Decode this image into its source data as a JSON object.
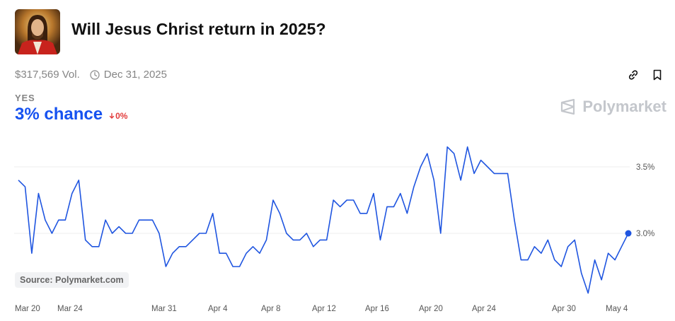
{
  "header": {
    "title": "Will Jesus Christ return in 2025?",
    "volume": "$317,569 Vol.",
    "end_date": "Dec 31, 2025"
  },
  "market": {
    "outcome": "YES",
    "chance": "3% chance",
    "change": "0%"
  },
  "brand": "Polymarket",
  "source": "Source: Polymarket.com",
  "colors": {
    "line": "#1f55e0",
    "chance": "#1652f0",
    "negative": "#e23b3b"
  },
  "chart_data": {
    "type": "line",
    "title": "",
    "xlabel": "",
    "ylabel": "",
    "x_ticks": [
      "Mar 20",
      "Mar 24",
      "Mar 31",
      "Apr 4",
      "Apr 8",
      "Apr 12",
      "Apr 16",
      "Apr 20",
      "Apr 24",
      "Apr 30",
      "May 4"
    ],
    "y_ticks": [
      "3.0%",
      "3.5%"
    ],
    "ylim": [
      2.4,
      3.7
    ],
    "grid": true,
    "series": [
      {
        "values": [
          3.4,
          3.35,
          2.85,
          3.3,
          3.1,
          3.0,
          3.1,
          3.1,
          3.3,
          3.4,
          2.95,
          2.9,
          2.9,
          3.1,
          3.0,
          3.05,
          3.0,
          3.0,
          3.1,
          3.1,
          3.1,
          3.0,
          2.75,
          2.85,
          2.9,
          2.9,
          2.95,
          3.0,
          3.0,
          3.15,
          2.85,
          2.85,
          2.75,
          2.75,
          2.85,
          2.9,
          2.85,
          2.95,
          3.25,
          3.15,
          3.0,
          2.95,
          2.95,
          3.0,
          2.9,
          2.95,
          2.95,
          3.25,
          3.2,
          3.25,
          3.25,
          3.15,
          3.15,
          3.3,
          2.95,
          3.2,
          3.2,
          3.3,
          3.15,
          3.35,
          3.5,
          3.6,
          3.4,
          3.0,
          3.65,
          3.6,
          3.4,
          3.65,
          3.45,
          3.55,
          3.5,
          3.45,
          3.45,
          3.45,
          3.1,
          2.8,
          2.8,
          2.9,
          2.85,
          2.95,
          2.8,
          2.75,
          2.9,
          2.95,
          2.7,
          2.55,
          2.8,
          2.65,
          2.85,
          2.8,
          2.9,
          3.0
        ]
      }
    ]
  }
}
